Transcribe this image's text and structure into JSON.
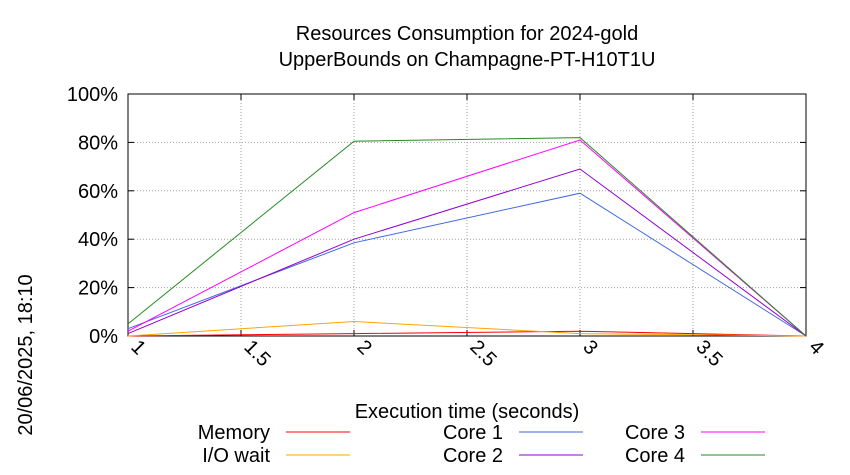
{
  "timestamp": "20/06/2025, 18:10",
  "chart_data": {
    "type": "line",
    "title": [
      "Resources Consumption for 2024-gold",
      "UpperBounds on Champagne-PT-H10T1U"
    ],
    "xlabel": "Execution time (seconds)",
    "ylabel": "",
    "xlim": [
      1,
      4
    ],
    "ylim": [
      0,
      100
    ],
    "x_ticks": [
      "1",
      "1.5",
      "2",
      "2.5",
      "3",
      "3.5",
      "4"
    ],
    "y_ticks": [
      "0%",
      "20%",
      "40%",
      "60%",
      "80%",
      "100%"
    ],
    "grid": true,
    "legend_position": "bottom",
    "x": [
      1,
      2,
      3,
      4
    ],
    "series": [
      {
        "name": "Memory",
        "color": "#ff0000",
        "values": [
          0,
          1,
          2,
          0
        ]
      },
      {
        "name": "I/O wait",
        "color": "#ffa500",
        "values": [
          0,
          6,
          1,
          0
        ]
      },
      {
        "name": "Core 1",
        "color": "#4169e1",
        "values": [
          3,
          38.5,
          59,
          0
        ]
      },
      {
        "name": "Core 2",
        "color": "#9400d3",
        "values": [
          1,
          40,
          69,
          0
        ]
      },
      {
        "name": "Core 3",
        "color": "#ff00ff",
        "values": [
          2,
          51,
          81,
          0
        ]
      },
      {
        "name": "Core 4",
        "color": "#228b22",
        "values": [
          5,
          80.5,
          82,
          0
        ]
      }
    ]
  }
}
